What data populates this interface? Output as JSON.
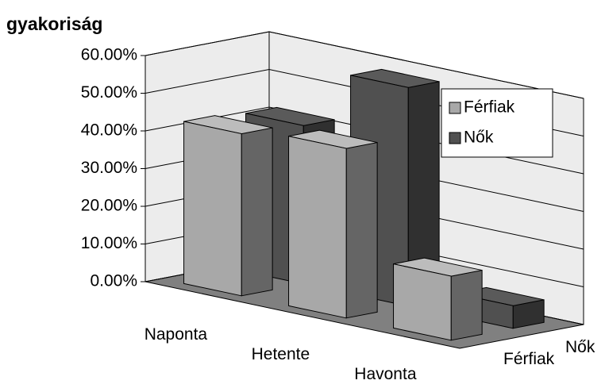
{
  "chart_data": {
    "type": "bar3d",
    "title": "gyakoriság",
    "categories": [
      "Naponta",
      "Hetente",
      "Havonta"
    ],
    "series": [
      {
        "name": "Férfiak",
        "color": "#a8a8a8",
        "values": [
          43,
          45,
          17
        ]
      },
      {
        "name": "Nők",
        "color": "#505050",
        "values": [
          42,
          58,
          6
        ]
      }
    ],
    "ylim": [
      0,
      60
    ],
    "yticks": [
      {
        "value": 0,
        "label": "0.00%"
      },
      {
        "value": 10,
        "label": "10.00%"
      },
      {
        "value": 20,
        "label": "20.00%"
      },
      {
        "value": 30,
        "label": "30.00%"
      },
      {
        "value": 40,
        "label": "40.00%"
      },
      {
        "value": 50,
        "label": "50.00%"
      },
      {
        "value": 60,
        "label": "60.00%"
      }
    ],
    "grid": true,
    "legend": "right"
  }
}
